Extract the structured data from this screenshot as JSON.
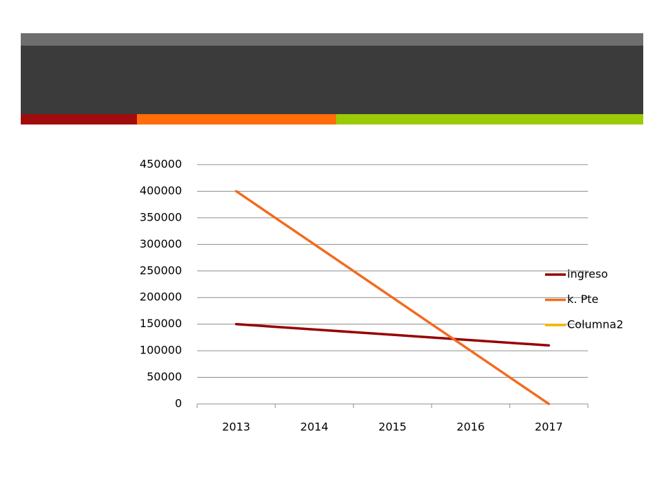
{
  "chart_data": {
    "type": "line",
    "categories": [
      "2013",
      "2014",
      "2015",
      "2016",
      "2017"
    ],
    "series": [
      {
        "name": "ingreso",
        "color": "#960000",
        "values": [
          150000,
          140000,
          130000,
          120000,
          110000
        ]
      },
      {
        "name": "k. Pte",
        "color": "#f26b1d",
        "values": [
          400000,
          300000,
          200000,
          100000,
          0
        ]
      },
      {
        "name": "Columna2",
        "color": "#f5b800",
        "values": [
          null,
          null,
          null,
          null,
          null
        ]
      }
    ],
    "ylim": [
      0,
      450000
    ],
    "yticks": [
      0,
      50000,
      100000,
      150000,
      200000,
      250000,
      300000,
      350000,
      400000,
      450000
    ],
    "grid": true,
    "legend": "right"
  }
}
